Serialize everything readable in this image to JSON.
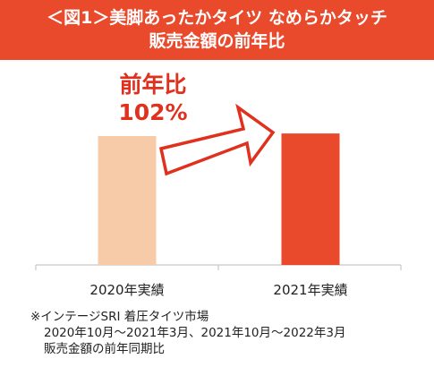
{
  "chart_data": {
    "type": "bar",
    "title": "＜図1＞美脚あったかタイツ なめらかタッチ",
    "subtitle": "販売金額の前年比",
    "categories": [
      "2020年実績",
      "2021年実績"
    ],
    "values": [
      100,
      102
    ],
    "bar_colors": [
      "#f7cba8",
      "#e84a2b"
    ],
    "ylim": [
      0,
      100
    ],
    "annotation": {
      "label": "前年比",
      "value": "102%",
      "color": "#e0301e"
    },
    "arrow_color": "#e0301e",
    "xlabel": "",
    "ylabel": ""
  },
  "footnote": {
    "line1": "※インテージSRI 着圧タイツ市場",
    "line2": "2020年10月～2021年3月、2021年10月～2022年3月",
    "line3": "販売金額の前年同期比"
  }
}
